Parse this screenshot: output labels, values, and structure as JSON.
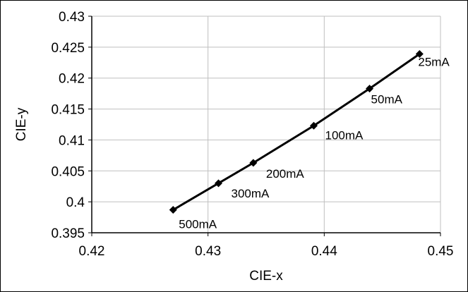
{
  "chart_data": {
    "type": "scatter",
    "title": "",
    "xlabel": "CIE-x",
    "ylabel": "CIE-y",
    "xlim": [
      0.42,
      0.45
    ],
    "ylim": [
      0.395,
      0.43
    ],
    "x_ticks": [
      0.42,
      0.43,
      0.44,
      0.45
    ],
    "x_tick_labels": [
      "0.42",
      "0.43",
      "0.44",
      "0.45"
    ],
    "y_ticks": [
      0.395,
      0.4,
      0.405,
      0.41,
      0.415,
      0.42,
      0.425,
      0.43
    ],
    "y_tick_labels": [
      "0.395",
      "0.4",
      "0.405",
      "0.41",
      "0.415",
      "0.42",
      "0.425",
      "0.43"
    ],
    "grid": true,
    "legend": "none",
    "line_color": "#000000",
    "marker": "diamond",
    "series": [
      {
        "points": [
          {
            "x": 0.4482,
            "y": 0.4239,
            "label": "25mA"
          },
          {
            "x": 0.4439,
            "y": 0.4183,
            "label": "50mA"
          },
          {
            "x": 0.4391,
            "y": 0.4123,
            "label": "100mA"
          },
          {
            "x": 0.4339,
            "y": 0.4063,
            "label": "200mA"
          },
          {
            "x": 0.4309,
            "y": 0.403,
            "label": "300mA"
          },
          {
            "x": 0.427,
            "y": 0.3987,
            "label": "500mA"
          }
        ]
      }
    ]
  }
}
